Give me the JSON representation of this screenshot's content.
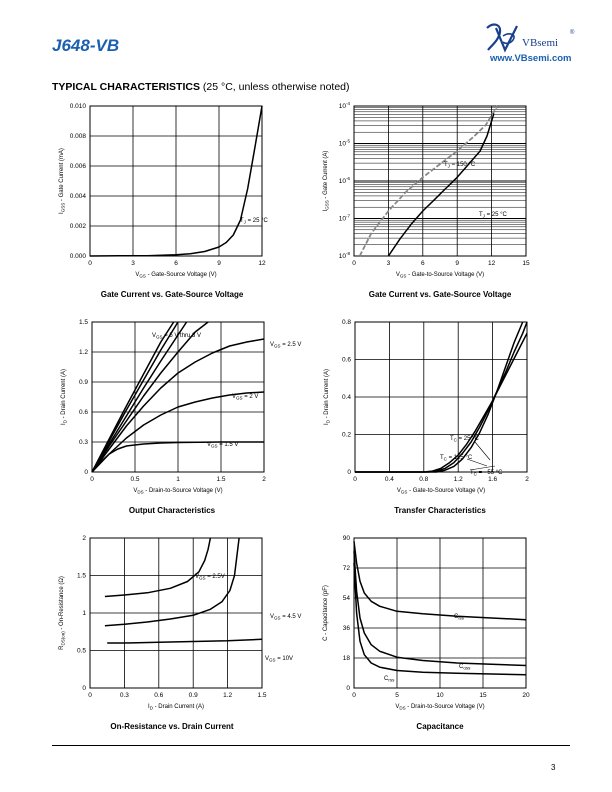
{
  "header": {
    "part_number": "J648-VB",
    "brand": "VBsemi",
    "brand_reg": "®",
    "url": "www.VBsemi.com"
  },
  "section": {
    "title": "TYPICAL CHARACTERISTICS",
    "note": " (25 °C, unless otherwise noted)"
  },
  "captions": {
    "c1": "Gate Current vs. Gate-Source Voltage",
    "c2": "Gate Current vs. Gate-Source Voltage",
    "c3": "Output Characteristics",
    "c4": "Transfer Characteristics",
    "c5": "On-Resistance vs. Drain Current",
    "c6": "Capacitance"
  },
  "page_number": "3",
  "chart_data": [
    {
      "type": "line",
      "id": "gate-current-linear",
      "xlabel_main": "V",
      "xlabel_sub": "GS",
      "xlabel_rest": " - Gate-Source Voltage (V)",
      "ylabel_main": "I",
      "ylabel_sub": "GSS",
      "ylabel_rest": " - Gate Current (mA)",
      "x_ticks": [
        "0",
        "3",
        "6",
        "9",
        "12"
      ],
      "y_ticks": [
        "0.000",
        "0.002",
        "0.004",
        "0.006",
        "0.008",
        "0.010"
      ],
      "xlim": [
        0,
        12
      ],
      "ylim": [
        0,
        0.01
      ],
      "annotations": [
        {
          "text": "T",
          "sub": "J",
          "rest": " = 25 °C"
        }
      ],
      "series": [
        {
          "x": [
            0,
            2,
            4,
            6,
            7,
            8,
            9,
            9.5,
            10,
            10.5,
            11,
            11.5,
            12
          ],
          "y": [
            0,
            1e-05,
            2e-05,
            8e-05,
            0.00015,
            0.0003,
            0.0006,
            0.0009,
            0.0014,
            0.0024,
            0.0045,
            0.0072,
            0.01
          ]
        }
      ]
    },
    {
      "type": "line",
      "id": "gate-current-log",
      "xlabel_main": "V",
      "xlabel_sub": "GS",
      "xlabel_rest": " - Gate-to-Source Voltage (V)",
      "ylabel_main": "I",
      "ylabel_sub": "GSS",
      "ylabel_rest": " - Gate Current (A)",
      "x_ticks": [
        "0",
        "3",
        "6",
        "9",
        "12",
        "15"
      ],
      "y_ticks": [
        "10",
        "10",
        "10",
        "10",
        "10"
      ],
      "y_exps": [
        "-8",
        "-7",
        "-6",
        "-5",
        "-4"
      ],
      "xlim": [
        0,
        15
      ],
      "ylim": [
        -8,
        -4
      ],
      "yscale": "log",
      "annotations": [
        {
          "text": "T",
          "sub": "J",
          "rest": " = 150 °C"
        },
        {
          "text": "T",
          "sub": "J",
          "rest": " = 25 °C"
        }
      ],
      "series": [
        {
          "name": "150",
          "x": [
            0.5,
            1.5,
            3,
            4.5,
            6,
            7.5,
            9,
            10.5,
            11.5,
            12,
            12.5
          ],
          "y": [
            -8,
            -7.4,
            -6.8,
            -6.3,
            -5.9,
            -5.55,
            -5.2,
            -4.8,
            -4.5,
            -4.25,
            -4
          ]
        },
        {
          "name": "25",
          "x": [
            3,
            4,
            5,
            6,
            7,
            8,
            9,
            10,
            11,
            11.6,
            12.2
          ],
          "y": [
            -8,
            -7.55,
            -7.15,
            -6.8,
            -6.5,
            -6.2,
            -5.9,
            -5.55,
            -5.2,
            -4.8,
            -4.2
          ]
        }
      ]
    },
    {
      "type": "line",
      "id": "output-characteristics",
      "xlabel_main": "V",
      "xlabel_sub": "DS",
      "xlabel_rest": " - Drain-to-Source Voltage (V)",
      "ylabel_main": "I",
      "ylabel_sub": "D",
      "ylabel_rest": " - Drain Current (A)",
      "x_ticks": [
        "0",
        "0.5",
        "1",
        "1.5",
        "2"
      ],
      "y_ticks": [
        "0",
        "0.3",
        "0.6",
        "0.9",
        "1.2",
        "1.5"
      ],
      "xlim": [
        0,
        2
      ],
      "ylim": [
        0,
        1.5
      ],
      "annotations": [
        {
          "text": "V",
          "sub": "GS",
          "rest": " = 5 V thru 3 V"
        },
        {
          "text": "V",
          "sub": "GS",
          "rest": " = 2.5 V"
        },
        {
          "text": "V",
          "sub": "GS",
          "rest": " = 2 V"
        },
        {
          "text": "V",
          "sub": "GS",
          "rest": " = 1.5 V"
        }
      ],
      "series": [
        {
          "name": "5V",
          "x": [
            0,
            0.2,
            0.4,
            0.6,
            0.8,
            0.95
          ],
          "y": [
            0,
            0.33,
            0.66,
            0.98,
            1.3,
            1.5
          ]
        },
        {
          "name": "4V",
          "x": [
            0,
            0.2,
            0.4,
            0.6,
            0.8,
            1.0
          ],
          "y": [
            0,
            0.31,
            0.62,
            0.92,
            1.22,
            1.5
          ]
        },
        {
          "name": "3.5V",
          "x": [
            0,
            0.2,
            0.4,
            0.6,
            0.8,
            1.0,
            1.1
          ],
          "y": [
            0,
            0.28,
            0.56,
            0.84,
            1.11,
            1.37,
            1.5
          ]
        },
        {
          "name": "3V",
          "x": [
            0,
            0.2,
            0.4,
            0.6,
            0.8,
            1.0,
            1.2,
            1.35
          ],
          "y": [
            0,
            0.26,
            0.51,
            0.76,
            0.99,
            1.2,
            1.4,
            1.5
          ]
        },
        {
          "name": "2.5V",
          "x": [
            0,
            0.2,
            0.4,
            0.6,
            0.8,
            1.0,
            1.2,
            1.4,
            1.6,
            1.8,
            2.0
          ],
          "y": [
            0,
            0.23,
            0.46,
            0.66,
            0.84,
            0.99,
            1.1,
            1.19,
            1.26,
            1.3,
            1.33
          ]
        },
        {
          "name": "2V",
          "x": [
            0,
            0.2,
            0.4,
            0.6,
            0.8,
            1.0,
            1.2,
            1.4,
            1.6,
            1.8,
            2.0
          ],
          "y": [
            0,
            0.18,
            0.34,
            0.47,
            0.57,
            0.65,
            0.7,
            0.74,
            0.77,
            0.79,
            0.8
          ]
        },
        {
          "name": "1.5V",
          "x": [
            0,
            0.1,
            0.2,
            0.3,
            0.4,
            0.6,
            0.8,
            1.0,
            1.5,
            2.0
          ],
          "y": [
            0,
            0.1,
            0.18,
            0.23,
            0.26,
            0.28,
            0.29,
            0.295,
            0.3,
            0.3
          ]
        }
      ]
    },
    {
      "type": "line",
      "id": "transfer-characteristics",
      "xlabel_main": "V",
      "xlabel_sub": "GS",
      "xlabel_rest": " - Gate-to-Source Voltage (V)",
      "ylabel_main": "I",
      "ylabel_sub": "D",
      "ylabel_rest": " - Drain Current (A)",
      "x_ticks": [
        "0",
        "0.4",
        "0.8",
        "1.2",
        "1.6",
        "2"
      ],
      "y_ticks": [
        "0",
        "0.2",
        "0.4",
        "0.6",
        "0.8"
      ],
      "xlim": [
        0,
        2
      ],
      "ylim": [
        0,
        0.8
      ],
      "annotations": [
        {
          "text": "T",
          "sub": "C",
          "rest": " = 25 °C"
        },
        {
          "text": "T",
          "sub": "C",
          "rest": " = 125 °C"
        },
        {
          "text": "T",
          "sub": "C",
          "rest": " = - 55 °C"
        }
      ],
      "series": [
        {
          "name": "125",
          "x": [
            0,
            0.8,
            0.9,
            1.0,
            1.1,
            1.2,
            1.3,
            1.4,
            1.5,
            1.6,
            1.7,
            1.8,
            1.9,
            2.0
          ],
          "y": [
            0,
            0,
            0.005,
            0.02,
            0.05,
            0.09,
            0.15,
            0.22,
            0.3,
            0.38,
            0.47,
            0.56,
            0.65,
            0.74
          ]
        },
        {
          "name": "25",
          "x": [
            0,
            0.85,
            0.95,
            1.05,
            1.15,
            1.25,
            1.35,
            1.45,
            1.55,
            1.65,
            1.75,
            1.85,
            1.95,
            2.0
          ],
          "y": [
            0,
            0,
            0.005,
            0.02,
            0.05,
            0.1,
            0.16,
            0.24,
            0.33,
            0.43,
            0.53,
            0.64,
            0.74,
            0.8
          ]
        },
        {
          "name": "-55",
          "x": [
            0,
            0.95,
            1.05,
            1.15,
            1.25,
            1.35,
            1.45,
            1.55,
            1.65,
            1.75,
            1.85,
            1.95
          ],
          "y": [
            0,
            0,
            0.01,
            0.03,
            0.07,
            0.13,
            0.21,
            0.31,
            0.43,
            0.56,
            0.69,
            0.8
          ]
        }
      ]
    },
    {
      "type": "line",
      "id": "on-resistance",
      "xlabel_main": "I",
      "xlabel_sub": "D",
      "xlabel_rest": " - Drain Current (A)",
      "ylabel_main": "R",
      "ylabel_sub": "DS(on)",
      "ylabel_rest": " - On-Resistance (Ω)",
      "x_ticks": [
        "0",
        "0.3",
        "0.6",
        "0.9",
        "1.2",
        "1.5"
      ],
      "y_ticks": [
        "0",
        "0.5",
        "1",
        "1.5",
        "2"
      ],
      "xlim": [
        0,
        1.5
      ],
      "ylim": [
        0,
        2
      ],
      "annotations": [
        {
          "text": "V",
          "sub": "GS",
          "rest": " = 2.5V"
        },
        {
          "text": "V",
          "sub": "GS",
          "rest": " = 4.5 V"
        },
        {
          "text": "V",
          "sub": "GS",
          "rest": " = 10V"
        }
      ],
      "series": [
        {
          "name": "2.5V",
          "x": [
            0.13,
            0.3,
            0.5,
            0.7,
            0.85,
            0.95,
            1.0,
            1.03,
            1.05
          ],
          "y": [
            1.22,
            1.24,
            1.27,
            1.33,
            1.42,
            1.55,
            1.7,
            1.85,
            2.0
          ]
        },
        {
          "name": "4.5V",
          "x": [
            0.13,
            0.3,
            0.5,
            0.7,
            0.9,
            1.05,
            1.15,
            1.22,
            1.26,
            1.28,
            1.3
          ],
          "y": [
            0.83,
            0.85,
            0.88,
            0.92,
            0.97,
            1.05,
            1.15,
            1.3,
            1.5,
            1.75,
            2.0
          ]
        },
        {
          "name": "10V",
          "x": [
            0.15,
            0.3,
            0.6,
            0.9,
            1.2,
            1.5
          ],
          "y": [
            0.6,
            0.6,
            0.61,
            0.62,
            0.63,
            0.65
          ]
        }
      ]
    },
    {
      "type": "line",
      "id": "capacitance",
      "xlabel_main": "V",
      "xlabel_sub": "DS",
      "xlabel_rest": " - Drain-to-Source Voltage (V)",
      "ylabel_main": "C",
      "ylabel_sub": "",
      "ylabel_rest": " - Capacitance (pF)",
      "x_ticks": [
        "0",
        "5",
        "10",
        "15",
        "20"
      ],
      "y_ticks": [
        "0",
        "18",
        "36",
        "54",
        "72",
        "90"
      ],
      "xlim": [
        0,
        20
      ],
      "ylim": [
        0,
        90
      ],
      "annotations": [
        {
          "text": "C",
          "sub": "iss",
          "rest": ""
        },
        {
          "text": "C",
          "sub": "oss",
          "rest": ""
        },
        {
          "text": "C",
          "sub": "rss",
          "rest": ""
        }
      ],
      "series": [
        {
          "name": "Ciss",
          "x": [
            0,
            0.3,
            0.7,
            1.2,
            2,
            3,
            5,
            8,
            12,
            16,
            20
          ],
          "y": [
            88,
            75,
            64,
            57,
            52,
            49,
            46,
            44.5,
            43,
            42,
            41
          ]
        },
        {
          "name": "Coss",
          "x": [
            0,
            0.3,
            0.7,
            1.2,
            2,
            3,
            5,
            8,
            12,
            16,
            20
          ],
          "y": [
            82,
            58,
            42,
            33,
            26,
            22,
            18.5,
            16.5,
            15,
            14.2,
            13.5
          ]
        },
        {
          "name": "Crss",
          "x": [
            0,
            0.3,
            0.7,
            1.2,
            2,
            3,
            5,
            8,
            12,
            16,
            20
          ],
          "y": [
            75,
            45,
            28,
            20,
            15,
            12.5,
            10.5,
            9.5,
            8.8,
            8.4,
            8
          ]
        }
      ]
    }
  ]
}
